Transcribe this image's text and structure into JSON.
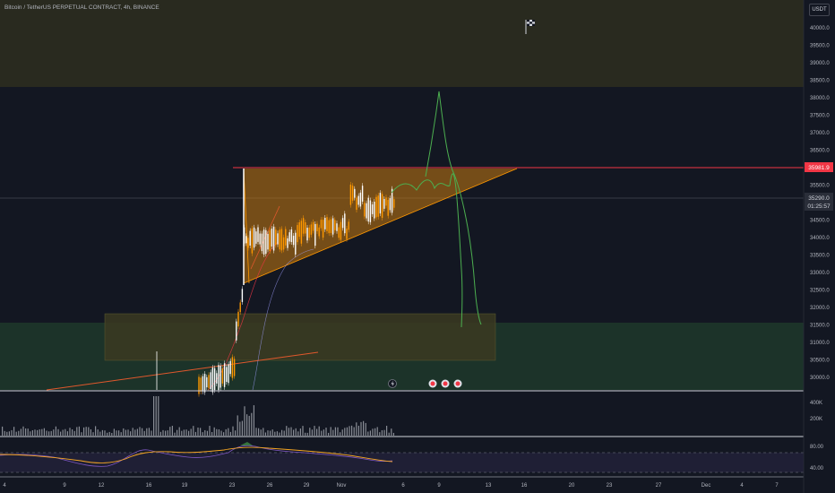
{
  "header": {
    "symbol_title": "Bitcoin / TetherUS PERPETUAL CONTRACT, 4h, BINANCE",
    "currency": "USDT"
  },
  "price_axis": {
    "ticks": [
      "40000.0",
      "39500.0",
      "39000.0",
      "38500.0",
      "38000.0",
      "37500.0",
      "37000.0",
      "36500.0",
      "36000.0",
      "35500.0",
      "35000.0",
      "34500.0",
      "34000.0",
      "33500.0",
      "33000.0",
      "32500.0",
      "32000.0",
      "31500.0",
      "31000.0",
      "30500.0",
      "30000.0"
    ],
    "resistance_label": "35981.9",
    "current_price": "35290.0",
    "countdown": "01:25:57"
  },
  "volume_axis": {
    "ticks": [
      "400K",
      "200K"
    ]
  },
  "rsi_axis": {
    "ticks": [
      "80.00",
      "40.00"
    ]
  },
  "time_axis": {
    "ticks": [
      "4",
      "9",
      "12",
      "16",
      "19",
      "23",
      "26",
      "29",
      "Nov",
      "6",
      "9",
      "13",
      "16",
      "20",
      "23",
      "27",
      "Dec",
      "4",
      "7"
    ]
  },
  "colors": {
    "background": "#131722",
    "upper_zone": "#292a1f",
    "lower_zone": "#1c3329",
    "support_box": "#3b3a21",
    "triangle_fill": "#c77a10",
    "resistance_line": "#f23645",
    "projection": "#4caf50",
    "candle_up": "#ffffff",
    "rsi_line": "#7e57c2",
    "rsi_ma": "#f5a623"
  }
}
